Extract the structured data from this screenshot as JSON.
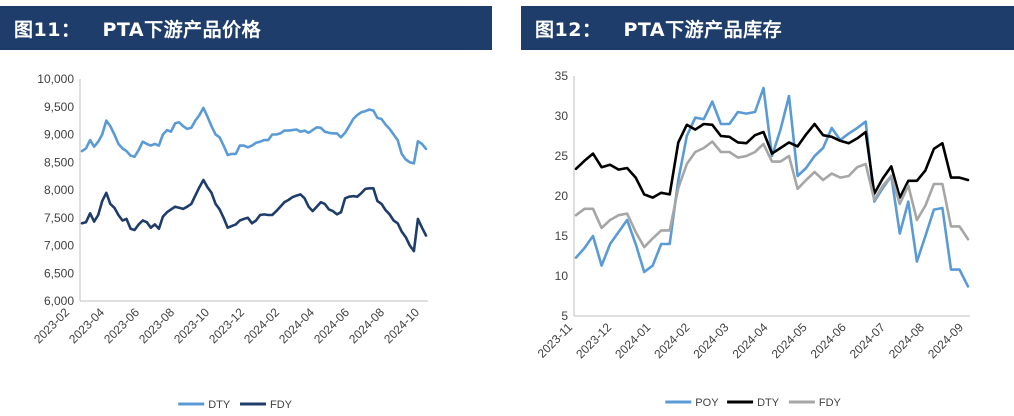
{
  "charts": [
    {
      "figure_label": "图11：",
      "title": "PTA下游产品价格",
      "colors": {
        "DTY": "#5b9bd5",
        "FDY": "#1f3d6b"
      }
    },
    {
      "figure_label": "图12：",
      "title": "PTA下游产品库存",
      "colors": {
        "POY": "#5b9bd5",
        "DTY": "#000000",
        "FDY": "#a6a6a6"
      }
    }
  ],
  "chart_data": [
    {
      "type": "line",
      "title": "PTA下游产品价格",
      "xlabel": "",
      "ylabel": "",
      "ylim": [
        6000,
        10000
      ],
      "y_ticks": [
        "10,000",
        "9,500",
        "9,000",
        "8,500",
        "8,000",
        "7,500",
        "7,000",
        "6,500",
        "6,000"
      ],
      "x_range": [
        "2023-01-27",
        "2024-10-12"
      ],
      "x_ticks": [
        "2023-02",
        "2023-04",
        "2023-06",
        "2023-08",
        "2023-10",
        "2023-12",
        "2024-02",
        "2024-04",
        "2024-06",
        "2024-08",
        "2024-10"
      ],
      "legend_position": "bottom-center",
      "series": [
        {
          "name": "DTY",
          "values": [
            8700,
            8750,
            8900,
            8780,
            8870,
            9000,
            9250,
            9150,
            9000,
            8830,
            8750,
            8700,
            8620,
            8600,
            8720,
            8870,
            8830,
            8800,
            8830,
            8800,
            9000,
            9080,
            9050,
            9200,
            9220,
            9150,
            9100,
            9120,
            9250,
            9350,
            9480,
            9320,
            9150,
            9000,
            8950,
            8800,
            8630,
            8650,
            8650,
            8800,
            8800,
            8770,
            8800,
            8850,
            8870,
            8900,
            8900,
            9000,
            9000,
            9020,
            9070,
            9070,
            9080,
            9090,
            9050,
            9070,
            9030,
            9080,
            9130,
            9120,
            9050,
            9030,
            9020,
            9020,
            8950,
            9030,
            9150,
            9280,
            9350,
            9400,
            9420,
            9450,
            9430,
            9300,
            9280,
            9180,
            9100,
            9000,
            8900,
            8650,
            8550,
            8500,
            8480,
            8880,
            8830,
            8740
          ]
        },
        {
          "name": "FDY",
          "values": [
            7400,
            7420,
            7580,
            7430,
            7550,
            7800,
            7950,
            7750,
            7680,
            7550,
            7450,
            7480,
            7300,
            7280,
            7380,
            7450,
            7420,
            7320,
            7380,
            7300,
            7520,
            7600,
            7650,
            7700,
            7680,
            7660,
            7700,
            7750,
            7900,
            8050,
            8180,
            8050,
            7950,
            7750,
            7650,
            7500,
            7320,
            7350,
            7380,
            7450,
            7480,
            7500,
            7400,
            7450,
            7550,
            7560,
            7550,
            7550,
            7620,
            7700,
            7780,
            7820,
            7870,
            7900,
            7920,
            7850,
            7700,
            7620,
            7700,
            7780,
            7750,
            7650,
            7620,
            7560,
            7600,
            7850,
            7880,
            7890,
            7880,
            7940,
            8020,
            8030,
            8030,
            7800,
            7750,
            7640,
            7560,
            7450,
            7400,
            7250,
            7150,
            7000,
            6900,
            7480,
            7320,
            7180
          ]
        }
      ]
    },
    {
      "type": "line",
      "title": "PTA下游产品库存",
      "xlabel": "",
      "ylabel": "",
      "ylim": [
        5,
        35
      ],
      "y_ticks": [
        "35",
        "30",
        "25",
        "20",
        "15",
        "10",
        "5"
      ],
      "x_range": [
        "2023-11-01",
        "2024-09-15"
      ],
      "x_ticks": [
        "2023-11",
        "2023-12",
        "2024-01",
        "2024-02",
        "2024-03",
        "2024-04",
        "2024-05",
        "2024-06",
        "2024-07",
        "2024-08",
        "2024-09"
      ],
      "legend_position": "bottom-center",
      "series": [
        {
          "name": "POY",
          "values": [
            12.3,
            13.5,
            15.0,
            11.3,
            14.0,
            15.5,
            17.0,
            14.0,
            10.5,
            11.3,
            14.0,
            14.0,
            22.0,
            27.5,
            29.8,
            29.6,
            31.8,
            29.0,
            29.0,
            30.5,
            30.3,
            30.5,
            33.5,
            25.0,
            28.3,
            32.5,
            22.5,
            23.5,
            25.0,
            26.0,
            28.5,
            27.0,
            27.8,
            28.5,
            29.3,
            19.3,
            21.0,
            22.5,
            15.3,
            19.3,
            11.8,
            15.0,
            18.3,
            18.5,
            10.8,
            10.8,
            8.7
          ]
        },
        {
          "name": "DTY",
          "values": [
            23.4,
            24.4,
            25.3,
            23.6,
            23.9,
            23.3,
            23.5,
            22.3,
            20.2,
            19.8,
            20.4,
            20.2,
            26.7,
            28.9,
            28.3,
            29.0,
            28.9,
            27.5,
            27.4,
            26.7,
            26.6,
            27.6,
            28.0,
            25.3,
            26.0,
            26.7,
            26.2,
            27.7,
            29.0,
            27.6,
            27.4,
            26.9,
            26.6,
            27.2,
            28.0,
            20.3,
            22.2,
            23.7,
            19.8,
            21.9,
            21.9,
            23.2,
            25.9,
            26.6,
            22.3,
            22.3,
            22.0
          ]
        },
        {
          "name": "FDY",
          "values": [
            17.6,
            18.4,
            18.4,
            16.0,
            17.0,
            17.6,
            17.8,
            15.5,
            13.6,
            14.7,
            15.7,
            15.7,
            21.0,
            24.0,
            25.5,
            26.0,
            26.8,
            25.5,
            25.5,
            24.8,
            25.0,
            25.5,
            26.5,
            24.3,
            24.3,
            25.0,
            20.9,
            22.0,
            23.0,
            22.0,
            22.8,
            22.3,
            22.5,
            23.6,
            24.0,
            19.5,
            21.3,
            22.5,
            19.0,
            21.3,
            17.0,
            18.8,
            21.5,
            21.5,
            16.2,
            16.2,
            14.6
          ]
        }
      ]
    }
  ]
}
